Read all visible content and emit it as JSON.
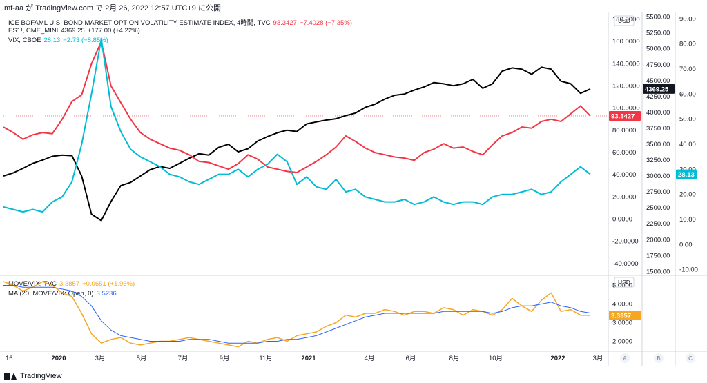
{
  "header": {
    "text": "mf-aa が TradingView.com で 2月 26, 2022 12:57 UTC+9 に公開"
  },
  "footer": {
    "brand": "TradingView"
  },
  "legend_main": [
    {
      "name": "ICE BOFAML U.S. BOND MARKET OPTION VOLATILITY ESTIMATE INDEX, 4時間, TVC",
      "value": "93.3427",
      "change": "−7.4028 (−7.35%)",
      "color": "#f23645"
    },
    {
      "name": "ES1!, CME_MINI",
      "value": "4369.25",
      "change": "+177.00 (+4.22%)",
      "color": "#131722"
    },
    {
      "name": "VIX, CBOE",
      "value": "28.13",
      "change": "−2.73 (−8.85%)",
      "color": "#00bcd4"
    }
  ],
  "legend_sub": [
    {
      "name": "MOVE/VIX, TVC",
      "value": "3.3857",
      "change": "+0.0651 (+1.96%)",
      "color": "#f5a623"
    },
    {
      "name": "MA (20, MOVE/VIX: Open, 0)",
      "value": "3.5236",
      "change": "",
      "color": "#2962ff"
    }
  ],
  "axis_units": {
    "left": "USD",
    "sub": "USD"
  },
  "price_tags": {
    "es": {
      "text": "4369.25",
      "color": "#131722"
    },
    "move": {
      "text": "93.3427",
      "color": "#f23645"
    },
    "vix": {
      "text": "28.13",
      "color": "#00bcd4"
    },
    "movevix": {
      "text": "3.3857",
      "color": "#f5a623"
    }
  },
  "scale_buttons": [
    "A",
    "B",
    "C"
  ],
  "chart_data": {
    "type": "line",
    "x_labels": [
      "16",
      "2020",
      "3月",
      "5月",
      "7月",
      "9月",
      "11月",
      "2021",
      "4月",
      "6月",
      "8月",
      "10月",
      "2022",
      "3月"
    ],
    "main_pane": {
      "scale_move": {
        "ticks": [
          "180.0000",
          "160.0000",
          "140.0000",
          "120.0000",
          "100.0000",
          "80.0000",
          "60.0000",
          "40.0000",
          "20.0000",
          "0.0000",
          "-20.0000",
          "-40.0000"
        ],
        "range": [
          -50,
          185
        ]
      },
      "scale_es": {
        "ticks": [
          "5500.00",
          "5250.00",
          "5000.00",
          "4750.00",
          "4500.00",
          "4250.00",
          "4000.00",
          "3750.00",
          "3500.00",
          "3250.00",
          "3000.00",
          "2750.00",
          "2500.00",
          "2250.00",
          "2000.00",
          "1750.00",
          "1500.00"
        ],
        "range": [
          1450,
          5550
        ]
      },
      "scale_vix": {
        "ticks": [
          "90.00",
          "80.00",
          "70.00",
          "60.00",
          "50.00",
          "40.00",
          "30.00",
          "20.00",
          "10.00",
          "0.00",
          "-10.00"
        ],
        "range": [
          -12,
          92
        ]
      },
      "series": [
        {
          "name": "ES1!",
          "scale": "es",
          "color": "#000000",
          "values": [
            3000,
            3050,
            3120,
            3200,
            3250,
            3310,
            3330,
            3320,
            3000,
            2400,
            2300,
            2600,
            2850,
            2900,
            3000,
            3100,
            3150,
            3120,
            3200,
            3280,
            3350,
            3330,
            3450,
            3500,
            3380,
            3430,
            3550,
            3620,
            3680,
            3720,
            3700,
            3820,
            3850,
            3880,
            3900,
            3950,
            3990,
            4080,
            4130,
            4210,
            4270,
            4290,
            4350,
            4400,
            4470,
            4450,
            4420,
            4450,
            4520,
            4380,
            4450,
            4650,
            4700,
            4680,
            4600,
            4710,
            4680,
            4490,
            4450,
            4300,
            4369
          ]
        },
        {
          "name": "MOVE",
          "scale": "move",
          "color": "#f23645",
          "values": [
            83,
            78,
            72,
            76,
            78,
            77,
            90,
            106,
            112,
            140,
            160,
            120,
            105,
            90,
            78,
            72,
            68,
            64,
            62,
            58,
            52,
            51,
            48,
            45,
            50,
            58,
            54,
            47,
            45,
            43,
            42,
            47,
            52,
            58,
            65,
            75,
            70,
            64,
            60,
            58,
            56,
            55,
            53,
            60,
            63,
            68,
            64,
            65,
            61,
            58,
            67,
            75,
            78,
            83,
            82,
            88,
            90,
            88,
            95,
            102,
            93
          ]
        },
        {
          "name": "VIX",
          "scale": "vix",
          "color": "#00bcd4",
          "values": [
            15,
            14,
            13,
            14,
            13,
            17,
            19,
            25,
            40,
            60,
            82,
            55,
            45,
            38,
            35,
            33,
            31,
            28,
            27,
            25,
            24,
            26,
            28,
            28,
            30,
            27,
            30,
            32,
            36,
            33,
            24,
            27,
            23,
            22,
            26,
            21,
            22,
            19,
            18,
            17,
            17,
            18,
            16,
            17,
            19,
            17,
            16,
            17,
            17,
            16,
            19,
            20,
            20,
            21,
            22,
            20,
            21,
            25,
            28,
            31,
            28
          ]
        }
      ]
    },
    "sub_pane": {
      "scale": {
        "ticks": [
          "5.0000",
          "4.0000",
          "3.0000",
          "2.0000"
        ],
        "range": [
          1.5,
          5.5
        ]
      },
      "series": [
        {
          "name": "MOVE/VIX",
          "color": "#f5a623",
          "values": [
            5.2,
            5.0,
            4.7,
            4.9,
            5.2,
            5.0,
            4.6,
            4.4,
            3.5,
            2.4,
            1.9,
            2.1,
            2.2,
            1.9,
            1.8,
            1.9,
            2.0,
            2.0,
            2.1,
            2.2,
            2.1,
            2.0,
            1.9,
            1.8,
            1.7,
            2.0,
            1.9,
            2.1,
            2.2,
            2.0,
            2.3,
            2.4,
            2.5,
            2.8,
            3.0,
            3.4,
            3.3,
            3.5,
            3.5,
            3.7,
            3.6,
            3.4,
            3.6,
            3.6,
            3.5,
            3.8,
            3.7,
            3.4,
            3.7,
            3.6,
            3.4,
            3.7,
            4.3,
            3.9,
            3.6,
            4.2,
            4.6,
            3.6,
            3.7,
            3.4,
            3.39
          ]
        },
        {
          "name": "MA",
          "color": "#2962ff",
          "values": [
            5.0,
            5.0,
            4.9,
            4.9,
            4.9,
            4.9,
            4.8,
            4.7,
            4.4,
            3.9,
            3.1,
            2.6,
            2.3,
            2.2,
            2.1,
            2.0,
            2.0,
            2.0,
            2.0,
            2.1,
            2.1,
            2.1,
            2.0,
            1.9,
            1.9,
            1.9,
            1.9,
            2.0,
            2.0,
            2.1,
            2.1,
            2.2,
            2.3,
            2.5,
            2.7,
            2.9,
            3.1,
            3.3,
            3.4,
            3.5,
            3.5,
            3.5,
            3.5,
            3.5,
            3.5,
            3.6,
            3.6,
            3.6,
            3.6,
            3.6,
            3.5,
            3.6,
            3.8,
            3.9,
            3.9,
            4.0,
            4.1,
            3.9,
            3.8,
            3.6,
            3.52
          ]
        }
      ]
    }
  }
}
